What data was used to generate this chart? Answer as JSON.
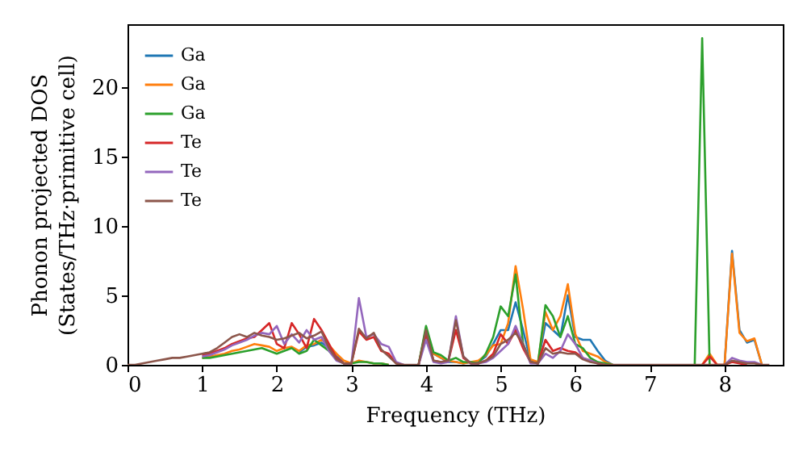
{
  "chart_data": {
    "type": "line",
    "xlabel": "Frequency (THz)",
    "ylabel": "Phonon projected DOS\n(States/THz·primitive cell)",
    "x": [
      0,
      0.1,
      0.2,
      0.3,
      0.4,
      0.5,
      0.6,
      0.7,
      0.8,
      0.9,
      1,
      1.1,
      1.2,
      1.3,
      1.4,
      1.5,
      1.6,
      1.7,
      1.8,
      1.9,
      2,
      2.1,
      2.2,
      2.3,
      2.4,
      2.5,
      2.6,
      2.7,
      2.8,
      2.9,
      3,
      3.1,
      3.2,
      3.3,
      3.4,
      3.5,
      3.6,
      3.7,
      3.8,
      3.9,
      4,
      4.1,
      4.2,
      4.3,
      4.4,
      4.5,
      4.6,
      4.7,
      4.8,
      4.9,
      5,
      5.1,
      5.2,
      5.3,
      5.4,
      5.5,
      5.6,
      5.7,
      5.8,
      5.9,
      6,
      6.1,
      6.2,
      6.3,
      6.4,
      6.5,
      6.6,
      6.7,
      6.8,
      6.9,
      7,
      7.1,
      7.2,
      7.3,
      7.4,
      7.5,
      7.6,
      7.7,
      7.8,
      7.9,
      8,
      8.1,
      8.2,
      8.3,
      8.4,
      8.5,
      8.6
    ],
    "series": [
      {
        "name": "Ga",
        "color": "#1f77b4",
        "values": [
          null,
          null,
          null,
          null,
          null,
          null,
          null,
          null,
          null,
          null,
          null,
          null,
          null,
          null,
          null,
          null,
          null,
          null,
          null,
          null,
          null,
          null,
          null,
          0.9,
          1.3,
          1.4,
          1.6,
          1.2,
          0.6,
          0.2,
          null,
          null,
          null,
          null,
          null,
          null,
          null,
          null,
          null,
          0,
          2.5,
          0.8,
          0.5,
          0.2,
          0.2,
          0.1,
          0.2,
          0.2,
          0.6,
          1.5,
          2.5,
          2.5,
          4.5,
          2.5,
          0.3,
          0.1,
          3.0,
          2.5,
          2.0,
          5.0,
          2.0,
          1.8,
          1.8,
          1.0,
          0.3,
          0,
          null,
          null,
          null,
          null,
          null,
          null,
          null,
          null,
          null,
          null,
          null,
          null,
          null,
          null,
          0,
          8.2,
          2.5,
          1.6,
          1.8,
          0,
          null
        ]
      },
      {
        "name": "Ga",
        "color": "#ff7f0e",
        "values": [
          null,
          null,
          null,
          null,
          null,
          null,
          null,
          null,
          null,
          null,
          0.5,
          0.6,
          0.7,
          0.8,
          1.0,
          1.1,
          1.3,
          1.5,
          1.4,
          1.3,
          1.0,
          1.2,
          1.3,
          1.0,
          1.4,
          1.5,
          1.8,
          1.4,
          0.8,
          0.3,
          0.1,
          0.3,
          0.2,
          0.1,
          0.1,
          0,
          null,
          null,
          null,
          0,
          2.6,
          0.8,
          0.5,
          0.3,
          0.2,
          0.1,
          0.2,
          0.3,
          0.7,
          1.4,
          1.5,
          3.0,
          7.1,
          4.0,
          0.4,
          0.2,
          3.8,
          2.5,
          3.5,
          5.8,
          2.2,
          1.0,
          0.8,
          0.6,
          0.2,
          0,
          null,
          null,
          null,
          null,
          null,
          null,
          null,
          null,
          null,
          null,
          null,
          0,
          0.8,
          0,
          0,
          8.0,
          2.3,
          1.7,
          1.9,
          0,
          null
        ]
      },
      {
        "name": "Ga",
        "color": "#2ca02c",
        "values": [
          null,
          null,
          null,
          null,
          null,
          null,
          null,
          null,
          null,
          null,
          0.5,
          0.5,
          0.6,
          0.7,
          0.8,
          0.9,
          1.0,
          1.1,
          1.2,
          1.0,
          0.8,
          1.0,
          1.2,
          0.8,
          1.0,
          1.8,
          1.4,
          1.0,
          0.4,
          0.1,
          0.1,
          0.2,
          0.2,
          0.1,
          0.1,
          0,
          null,
          null,
          null,
          0,
          2.8,
          0.9,
          0.7,
          0.3,
          0.5,
          0.2,
          0.2,
          0.1,
          0.8,
          2.0,
          4.2,
          3.5,
          6.5,
          1.5,
          0.2,
          0.1,
          4.3,
          3.5,
          2.0,
          3.5,
          1.5,
          1.2,
          0.5,
          0.2,
          0.1,
          0,
          null,
          null,
          null,
          null,
          null,
          null,
          null,
          null,
          null,
          null,
          0,
          23.5,
          0,
          null,
          null,
          null,
          null,
          null,
          null,
          null,
          null
        ]
      },
      {
        "name": "Te",
        "color": "#d62728",
        "values": [
          null,
          null,
          null,
          null,
          null,
          null,
          null,
          null,
          null,
          null,
          0.7,
          0.8,
          1.0,
          1.2,
          1.5,
          1.7,
          1.9,
          2.0,
          2.5,
          3.0,
          1.5,
          1.2,
          3.0,
          2.2,
          1.2,
          3.3,
          2.5,
          1.5,
          0.5,
          0.1,
          0.1,
          2.4,
          1.8,
          2.0,
          1.0,
          0.8,
          0.1,
          0,
          null,
          0,
          2.2,
          0.3,
          0.2,
          0.3,
          2.5,
          0.5,
          0.1,
          0.1,
          0.3,
          0.8,
          2.2,
          1.5,
          2.5,
          1.2,
          0.2,
          0.1,
          1.8,
          1.0,
          1.2,
          1.0,
          0.9,
          0.5,
          0.3,
          0.1,
          0,
          null,
          null,
          null,
          null,
          null,
          null,
          null,
          null,
          null,
          null,
          null,
          null,
          0,
          0.6,
          0,
          0,
          0.2,
          0.1,
          0,
          null,
          null,
          null
        ]
      },
      {
        "name": "Te",
        "color": "#9467bd",
        "values": [
          null,
          null,
          null,
          null,
          null,
          null,
          null,
          null,
          null,
          null,
          0.6,
          0.7,
          0.9,
          1.1,
          1.4,
          1.6,
          1.8,
          2.1,
          2.3,
          2.2,
          2.8,
          1.5,
          2.2,
          1.6,
          2.5,
          1.8,
          2.0,
          1.0,
          0.3,
          0.1,
          0.1,
          4.8,
          2.0,
          2.2,
          1.5,
          1.3,
          0.2,
          0,
          null,
          0,
          1.8,
          0.2,
          0.1,
          0.2,
          3.5,
          0.6,
          0.1,
          0.1,
          0.2,
          0.5,
          1.0,
          1.5,
          2.8,
          1.5,
          0.1,
          0.1,
          0.8,
          0.5,
          1.0,
          2.2,
          1.5,
          0.5,
          0.3,
          0.1,
          0,
          null,
          null,
          null,
          null,
          null,
          null,
          null,
          null,
          null,
          null,
          null,
          null,
          null,
          null,
          null,
          0,
          0.5,
          0.3,
          0.2,
          0.2,
          0,
          null
        ]
      },
      {
        "name": "Te",
        "color": "#8c564b",
        "values": [
          0,
          0,
          0.1,
          0.2,
          0.3,
          0.4,
          0.5,
          0.5,
          0.6,
          0.7,
          0.8,
          0.9,
          1.2,
          1.6,
          2.0,
          2.2,
          2.0,
          2.3,
          2.1,
          2.0,
          1.8,
          1.9,
          2.1,
          2.3,
          1.9,
          2.1,
          2.4,
          1.2,
          0.4,
          0.1,
          0.1,
          2.6,
          1.9,
          2.3,
          1.1,
          0.6,
          0.1,
          0,
          0,
          0,
          2.5,
          0.3,
          0.2,
          0.3,
          3.2,
          0.6,
          0.1,
          0.1,
          0.3,
          0.6,
          1.5,
          1.8,
          2.3,
          1.5,
          0.2,
          0.1,
          1.2,
          0.8,
          0.9,
          0.8,
          0.8,
          0.4,
          0.2,
          0.1,
          0,
          0,
          0,
          0,
          0,
          0,
          0,
          0,
          0,
          0,
          0,
          0,
          0,
          0,
          0,
          0,
          0,
          0.3,
          0.2,
          0.1,
          0.1,
          0,
          0
        ]
      }
    ],
    "xlim": [
      0,
      8.78
    ],
    "xticks": [
      0,
      1,
      2,
      3,
      4,
      5,
      6,
      7,
      8
    ],
    "ylim": [
      0,
      24.5
    ],
    "yticks": [
      0,
      5,
      10,
      15,
      20
    ],
    "legend": "top left",
    "grid": false
  }
}
